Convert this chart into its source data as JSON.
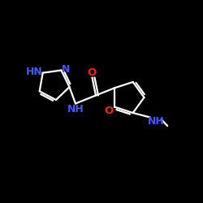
{
  "background_color": "#000000",
  "bond_color": "#ffffff",
  "N_color": "#4455ff",
  "O_color": "#ff2200",
  "figsize": [
    2.5,
    2.5
  ],
  "dpi": 100,
  "xlim": [
    0,
    10
  ],
  "ylim": [
    0,
    10
  ]
}
